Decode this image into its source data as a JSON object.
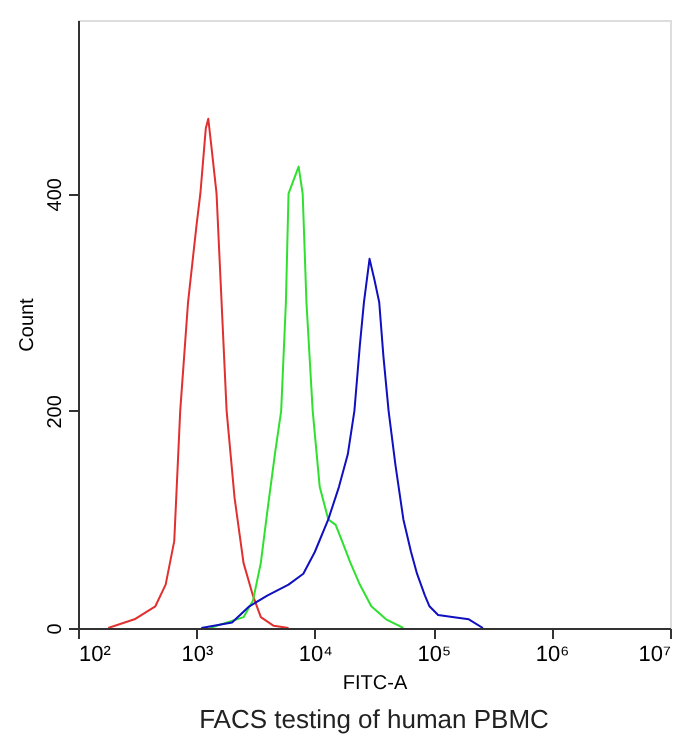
{
  "chart_data": {
    "type": "line",
    "title": "FACS testing of human PBMC",
    "xlabel": "FITC-A",
    "ylabel": "Count",
    "log": "x",
    "grid": false,
    "marker": "none",
    "line_style": "solid",
    "xlim": [
      100,
      10000000
    ],
    "xticks": [
      {
        "value": 100,
        "label": "10²"
      },
      {
        "value": 1000,
        "label": "10³"
      },
      {
        "value": 10000,
        "label": "10⁴"
      },
      {
        "value": 100000,
        "label": "10⁵"
      },
      {
        "value": 1000000,
        "label": "10⁶"
      },
      {
        "value": 10000000,
        "label": "10⁷"
      }
    ],
    "ylim": [
      0,
      560
    ],
    "yticks": [
      0,
      200,
      400
    ],
    "series": [
      {
        "color": "#e03030",
        "x": [
          180,
          300,
          450,
          550,
          650,
          730,
          850,
          1000,
          1080,
          1200,
          1260,
          1350,
          1480,
          1600,
          1800,
          2100,
          2500,
          3000,
          3500,
          4500,
          6000
        ],
        "values": [
          0,
          8,
          20,
          40,
          80,
          200,
          300,
          370,
          400,
          460,
          469,
          440,
          400,
          320,
          200,
          120,
          60,
          30,
          10,
          2,
          0
        ]
      },
      {
        "color": "#30e030",
        "x": [
          1300,
          2500,
          3000,
          3500,
          4000,
          4600,
          5200,
          5700,
          6000,
          7300,
          7900,
          8500,
          9600,
          11000,
          13000,
          15000,
          17000,
          20000,
          24000,
          30000,
          40000,
          56000
        ],
        "values": [
          0,
          10,
          25,
          60,
          110,
          160,
          200,
          300,
          400,
          425,
          400,
          300,
          200,
          130,
          100,
          95,
          80,
          60,
          40,
          20,
          8,
          0
        ]
      },
      {
        "color": "#1010c0",
        "x": [
          1100,
          2000,
          2800,
          4000,
          6000,
          8000,
          10000,
          13000,
          16000,
          19000,
          21600,
          24000,
          26000,
          29000,
          32000,
          35000,
          38000,
          42000,
          48000,
          56000,
          65000,
          73000,
          85000,
          93000,
          110000,
          150000,
          200000,
          263000
        ],
        "values": [
          0,
          5,
          20,
          30,
          40,
          50,
          70,
          100,
          130,
          160,
          200,
          260,
          300,
          340,
          320,
          300,
          250,
          200,
          150,
          100,
          70,
          50,
          30,
          20,
          12,
          10,
          8,
          0
        ]
      }
    ]
  }
}
